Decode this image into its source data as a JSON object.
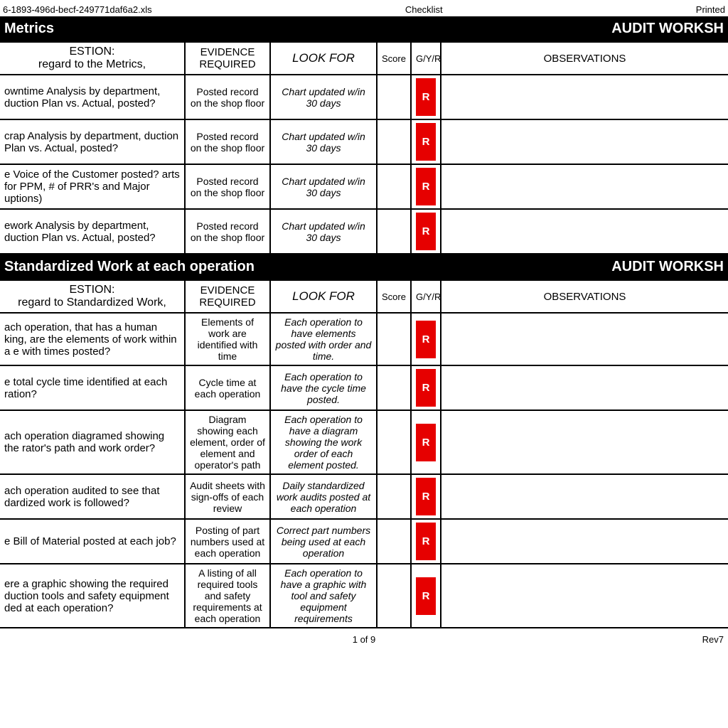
{
  "meta": {
    "filename_fragment": "6-1893-496d-becf-249771daf6a2.xls",
    "center_label": "Checklist",
    "printed_label": "Printed",
    "page_of": "1 of 9",
    "rev": "Rev7"
  },
  "colors": {
    "section_bg": "#000000",
    "section_fg": "#ffffff",
    "border": "#000000",
    "r_bg": "#e60000",
    "r_fg": "#ffffff",
    "page_bg": "#ffffff"
  },
  "sections": [
    {
      "title_left": "Metrics",
      "title_right": "AUDIT WORKSH",
      "header": {
        "question": "ESTION:\nregard to the Metrics,",
        "evidence": "EVIDENCE REQUIRED",
        "look_for": "LOOK FOR",
        "score": "Score",
        "gyr": "G/Y/R",
        "observations": "OBSERVATIONS"
      },
      "rows": [
        {
          "question": "owntime Analysis by department, duction Plan vs. Actual, posted?",
          "evidence": "Posted record on the shop floor",
          "look_for": "Chart updated w/in 30 days",
          "score": "",
          "gyr": "R",
          "observations": ""
        },
        {
          "question": "crap Analysis by department, duction Plan vs. Actual, posted?",
          "evidence": "Posted record on the shop floor",
          "look_for": "Chart updated w/in 30 days",
          "score": "",
          "gyr": "R",
          "observations": ""
        },
        {
          "question": "e Voice of the Customer posted? arts for PPM, # of PRR's and Major uptions)",
          "evidence": "Posted record on the shop floor",
          "look_for": "Chart updated w/in 30 days",
          "score": "",
          "gyr": "R",
          "observations": ""
        },
        {
          "question": "ework Analysis by department, duction Plan vs. Actual, posted?",
          "evidence": "Posted record on the shop floor",
          "look_for": "Chart updated w/in 30 days",
          "score": "",
          "gyr": "R",
          "observations": ""
        }
      ]
    },
    {
      "title_left": "Standardized Work at each operation",
      "title_right": "AUDIT WORKSH",
      "header": {
        "question": "ESTION:\nregard to Standardized Work,",
        "evidence": "EVIDENCE REQUIRED",
        "look_for": "LOOK FOR",
        "score": "Score",
        "gyr": "G/Y/R",
        "observations": "OBSERVATIONS"
      },
      "rows": [
        {
          "question": "ach operation, that has a human king, are the elements of work within a e with times posted?",
          "evidence": "Elements of work are identified with time",
          "look_for": "Each operation to have elements posted with order and time.",
          "score": "",
          "gyr": "R",
          "observations": ""
        },
        {
          "question": "e total cycle time identified at each ration?",
          "evidence": "Cycle time at each operation",
          "look_for": "Each operation to have the cycle time posted.",
          "score": "",
          "gyr": "R",
          "observations": ""
        },
        {
          "question": "ach operation diagramed showing the rator's path and work order?",
          "evidence": "Diagram showing each element, order of element and operator's path",
          "look_for": "Each operation to have a diagram showing the work order of each element posted.",
          "score": "",
          "gyr": "R",
          "observations": ""
        },
        {
          "question": "ach operation audited to see that dardized work is followed?",
          "evidence": "Audit sheets with sign-offs of each review",
          "look_for": "Daily standardized work audits posted at each operation",
          "score": "",
          "gyr": "R",
          "observations": ""
        },
        {
          "question": "e Bill of Material posted at each job?",
          "evidence": "Posting of part numbers used at each operation",
          "look_for": "Correct part numbers being used at each operation",
          "score": "",
          "gyr": "R",
          "observations": ""
        },
        {
          "question": "ere a graphic showing the required duction tools and safety equipment ded at each operation?",
          "evidence": "A listing of all required tools and safety requirements at each operation",
          "look_for": "Each operation to have a graphic with tool and safety equipment requirements",
          "score": "",
          "gyr": "R",
          "observations": ""
        }
      ]
    }
  ]
}
